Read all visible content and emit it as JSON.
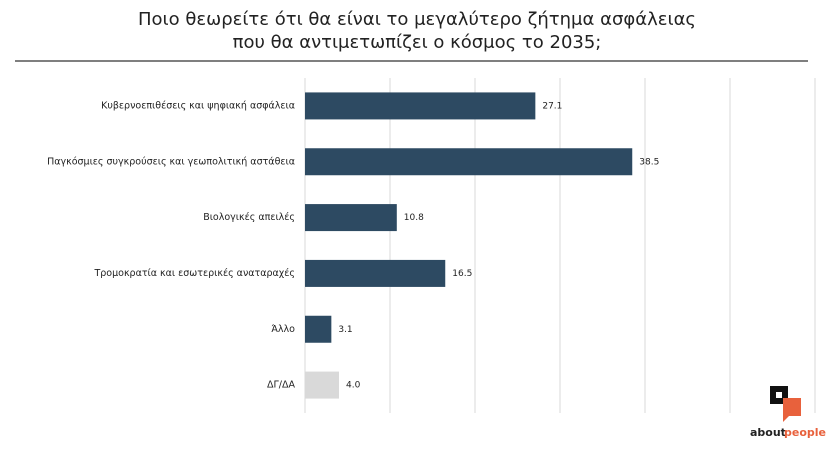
{
  "chart_data": {
    "type": "barh",
    "title": [
      "Ποιο θεωρείτε ότι θα είναι το μεγαλύτερο ζήτημα ασφάλειας",
      "που θα αντιμετωπίζει ο κόσμος το 2035;"
    ],
    "categories": [
      "Κυβερνοεπιθέσεις και ψηφιακή ασφάλεια",
      "Παγκόσμιες συγκρούσεις και γεωπολιτική αστάθεια",
      "Βιολογικές απειλές",
      "Τρομοκρατία και εσωτερικές αναταραχές",
      "Άλλο",
      "ΔΓ/ΔΑ"
    ],
    "values": [
      27.1,
      38.5,
      10.8,
      16.5,
      3.1,
      4.0
    ],
    "value_labels": [
      "27.1",
      "38.5",
      "10.8",
      "16.5",
      "3.1",
      "4.0"
    ],
    "colors": [
      "#2d4a62",
      "#2d4a62",
      "#2d4a62",
      "#2d4a62",
      "#2d4a62",
      "#d9d9d9"
    ],
    "xlim": [
      0,
      60
    ],
    "xticks": [
      0,
      10,
      20,
      30,
      40,
      50,
      60
    ],
    "grid": true,
    "logo": [
      "about",
      "people"
    ]
  }
}
